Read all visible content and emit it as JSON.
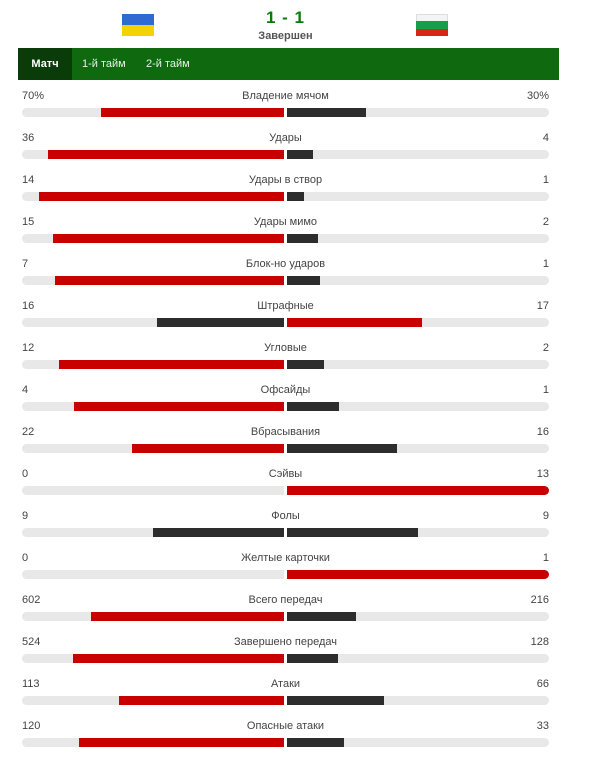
{
  "match": {
    "score": "1 - 1",
    "status": "Завершен"
  },
  "tabs": [
    {
      "label": "Матч",
      "active": true
    },
    {
      "label": "1-й тайм",
      "active": false
    },
    {
      "label": "2-й тайм",
      "active": false
    }
  ],
  "colors": {
    "winner": "#c80000",
    "loser": "#2d2d2d",
    "track": "#e8e8e8",
    "tab_bar": "#0f6a0f",
    "tab_active": "#0a3c0a"
  },
  "stats": [
    {
      "name": "Владение мячом",
      "home": "70%",
      "away": "30%",
      "home_val": 70,
      "away_val": 30
    },
    {
      "name": "Удары",
      "home": "36",
      "away": "4",
      "home_val": 36,
      "away_val": 4
    },
    {
      "name": "Удары в створ",
      "home": "14",
      "away": "1",
      "home_val": 14,
      "away_val": 1
    },
    {
      "name": "Удары мимо",
      "home": "15",
      "away": "2",
      "home_val": 15,
      "away_val": 2
    },
    {
      "name": "Блок-но ударов",
      "home": "7",
      "away": "1",
      "home_val": 7,
      "away_val": 1
    },
    {
      "name": "Штрафные",
      "home": "16",
      "away": "17",
      "home_val": 16,
      "away_val": 17
    },
    {
      "name": "Угловые",
      "home": "12",
      "away": "2",
      "home_val": 12,
      "away_val": 2
    },
    {
      "name": "Офсайды",
      "home": "4",
      "away": "1",
      "home_val": 4,
      "away_val": 1
    },
    {
      "name": "Вбрасывания",
      "home": "22",
      "away": "16",
      "home_val": 22,
      "away_val": 16
    },
    {
      "name": "Сэйвы",
      "home": "0",
      "away": "13",
      "home_val": 0,
      "away_val": 13
    },
    {
      "name": "Фолы",
      "home": "9",
      "away": "9",
      "home_val": 9,
      "away_val": 9
    },
    {
      "name": "Желтые карточки",
      "home": "0",
      "away": "1",
      "home_val": 0,
      "away_val": 1
    },
    {
      "name": "Всего передач",
      "home": "602",
      "away": "216",
      "home_val": 602,
      "away_val": 216
    },
    {
      "name": "Завершено передач",
      "home": "524",
      "away": "128",
      "home_val": 524,
      "away_val": 128
    },
    {
      "name": "Атаки",
      "home": "113",
      "away": "66",
      "home_val": 113,
      "away_val": 66
    },
    {
      "name": "Опасные атаки",
      "home": "120",
      "away": "33",
      "home_val": 120,
      "away_val": 33
    }
  ]
}
